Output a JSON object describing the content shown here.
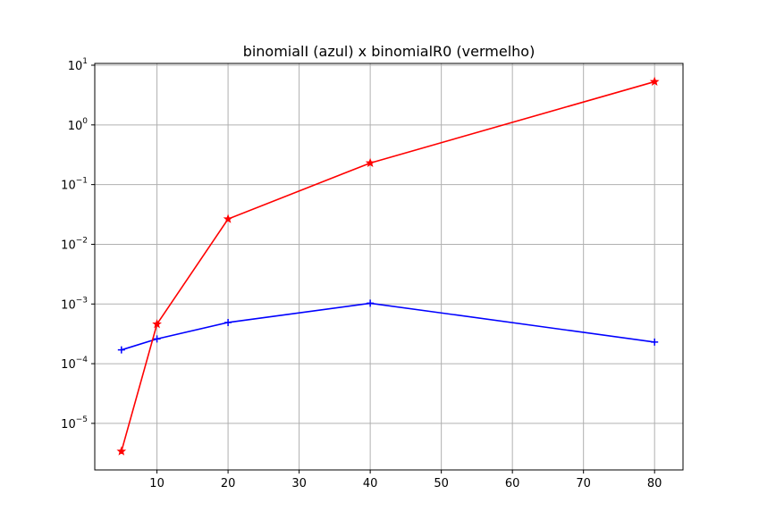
{
  "chart_data": {
    "type": "line",
    "title": "binomialI (azul) x binomialR0 (vermelho)",
    "xlabel": "",
    "ylabel": "",
    "xlim": [
      1.25,
      84.0
    ],
    "ylim_log10": [
      -5.78,
      1.03
    ],
    "yscale": "log",
    "grid": true,
    "x_ticks": [
      10,
      20,
      30,
      40,
      50,
      60,
      70,
      80
    ],
    "y_ticks": [
      {
        "exp": -5,
        "base": "10",
        "power": "−5"
      },
      {
        "exp": -4,
        "base": "10",
        "power": "−4"
      },
      {
        "exp": -3,
        "base": "10",
        "power": "−3"
      },
      {
        "exp": -2,
        "base": "10",
        "power": "−2"
      },
      {
        "exp": -1,
        "base": "10",
        "power": "−1"
      },
      {
        "exp": 0,
        "base": "10",
        "power": "0"
      },
      {
        "exp": 1,
        "base": "10",
        "power": "1"
      }
    ],
    "series": [
      {
        "color": "#0000ff",
        "marker": "plus",
        "x": [
          5,
          10,
          20,
          40,
          80
        ],
        "y": [
          0.00017,
          0.00026,
          0.00049,
          0.00103,
          0.00023
        ]
      },
      {
        "color": "#ff0000",
        "marker": "star",
        "x": [
          5,
          10,
          20,
          40,
          80
        ],
        "y": [
          3.4e-06,
          0.00046,
          0.0265,
          0.23,
          5.3
        ]
      }
    ]
  }
}
